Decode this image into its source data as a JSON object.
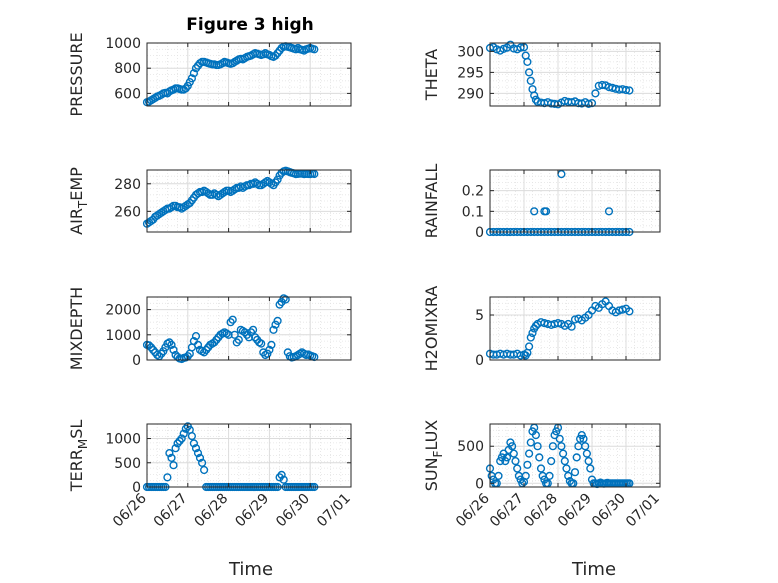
{
  "figure": {
    "title": "Figure 3 high",
    "xlabel": "Time"
  },
  "colors": {
    "marker": "#0072BD",
    "axis": "#262626",
    "grid": "#dcdcdc",
    "minor_grid": "#e3e3e3"
  },
  "x_ticks": [
    "06/26",
    "06/27",
    "06/28",
    "06/29",
    "06/30",
    "07/01"
  ],
  "chart_data": [
    {
      "type": "scatter",
      "title": "Figure 3 high",
      "ylabel": "PRESSURE",
      "ylim": [
        500,
        1000
      ],
      "yticks": [
        600,
        800,
        1000
      ],
      "grid": true,
      "x": [
        0,
        0.05,
        0.1,
        0.15,
        0.2,
        0.25,
        0.3,
        0.35,
        0.4,
        0.45,
        0.5,
        0.55,
        0.6,
        0.65,
        0.7,
        0.75,
        0.8,
        0.85,
        0.9,
        0.95,
        1,
        1.05,
        1.1,
        1.15,
        1.2,
        1.25,
        1.3,
        1.35,
        1.4,
        1.45,
        1.5,
        1.55,
        1.6,
        1.65,
        1.7,
        1.75,
        1.8,
        1.85,
        1.9,
        1.95,
        2,
        2.05,
        2.1,
        2.15,
        2.2,
        2.25,
        2.3,
        2.35,
        2.4,
        2.45,
        2.5,
        2.55,
        2.6,
        2.65,
        2.7,
        2.75,
        2.8,
        2.85,
        2.9,
        2.95,
        3,
        3.05,
        3.1,
        3.15,
        3.2,
        3.25,
        3.3,
        3.35,
        3.4,
        3.45,
        3.5,
        3.55,
        3.6,
        3.65,
        3.7,
        3.75,
        3.8,
        3.85,
        3.9,
        3.95,
        4.0,
        4.05,
        4.1
      ],
      "y": [
        530,
        535,
        545,
        555,
        565,
        575,
        580,
        590,
        600,
        605,
        600,
        615,
        625,
        630,
        640,
        640,
        635,
        630,
        630,
        640,
        660,
        690,
        720,
        760,
        800,
        820,
        840,
        850,
        850,
        845,
        840,
        835,
        830,
        830,
        825,
        825,
        830,
        840,
        850,
        845,
        840,
        835,
        840,
        850,
        860,
        870,
        875,
        870,
        880,
        890,
        895,
        900,
        910,
        920,
        915,
        910,
        905,
        910,
        920,
        910,
        905,
        895,
        890,
        900,
        920,
        940,
        960,
        970,
        975,
        970,
        965,
        960,
        955,
        950,
        960,
        950,
        945,
        940,
        950,
        955,
        960,
        955,
        950
      ]
    },
    {
      "type": "scatter",
      "ylabel": "THETA",
      "ylim": [
        287,
        302
      ],
      "yticks": [
        290,
        295,
        300
      ],
      "grid": true,
      "x": [
        0,
        0.1,
        0.2,
        0.3,
        0.4,
        0.5,
        0.6,
        0.7,
        0.8,
        0.9,
        1,
        1.05,
        1.1,
        1.15,
        1.2,
        1.25,
        1.3,
        1.35,
        1.4,
        1.5,
        1.6,
        1.7,
        1.8,
        1.9,
        2,
        2.1,
        2.2,
        2.3,
        2.4,
        2.5,
        2.6,
        2.7,
        2.8,
        2.9,
        3,
        3.1,
        3.2,
        3.3,
        3.4,
        3.5,
        3.6,
        3.7,
        3.8,
        3.9,
        4.0,
        4.1
      ],
      "y": [
        300.8,
        301,
        300.5,
        300.2,
        300.6,
        300.9,
        301.6,
        300.7,
        300.5,
        300.9,
        301,
        299,
        297.5,
        295,
        293,
        291,
        289.5,
        288.5,
        288,
        287.8,
        287.7,
        287.9,
        287.6,
        287.5,
        287.4,
        287.8,
        288.2,
        288,
        287.9,
        288.1,
        287.7,
        287.6,
        287.9,
        287.5,
        287.7,
        290,
        291.8,
        292,
        291.9,
        291.5,
        291.3,
        291.1,
        290.9,
        291,
        290.8,
        290.7
      ]
    },
    {
      "type": "scatter",
      "ylabel": "AIR_TEMP",
      "ylim": [
        245,
        290
      ],
      "yticks": [
        260,
        280
      ],
      "grid": true,
      "x": [
        0,
        0.05,
        0.1,
        0.15,
        0.2,
        0.25,
        0.3,
        0.35,
        0.4,
        0.45,
        0.5,
        0.55,
        0.6,
        0.65,
        0.7,
        0.75,
        0.8,
        0.85,
        0.9,
        0.95,
        1,
        1.05,
        1.1,
        1.15,
        1.2,
        1.25,
        1.3,
        1.35,
        1.4,
        1.45,
        1.5,
        1.55,
        1.6,
        1.65,
        1.7,
        1.75,
        1.8,
        1.85,
        1.9,
        1.95,
        2,
        2.05,
        2.1,
        2.15,
        2.2,
        2.25,
        2.3,
        2.35,
        2.4,
        2.45,
        2.5,
        2.55,
        2.6,
        2.65,
        2.7,
        2.75,
        2.8,
        2.85,
        2.9,
        2.95,
        3,
        3.05,
        3.1,
        3.15,
        3.2,
        3.25,
        3.3,
        3.35,
        3.4,
        3.45,
        3.5,
        3.55,
        3.6,
        3.65,
        3.7,
        3.75,
        3.8,
        3.85,
        3.9,
        3.95,
        4.0,
        4.05,
        4.1
      ],
      "y": [
        251,
        252,
        253,
        254,
        256,
        257,
        258,
        259,
        260,
        261,
        262,
        262,
        263,
        264,
        264,
        263,
        263,
        262,
        263,
        264,
        265,
        266,
        268,
        270,
        272,
        273,
        274,
        274,
        275,
        274,
        273,
        272,
        272,
        273,
        272,
        271,
        272,
        273,
        274,
        275,
        275,
        274,
        275,
        276,
        277,
        277,
        278,
        277,
        278,
        279,
        279,
        280,
        280,
        281,
        280,
        279,
        279,
        280,
        281,
        282,
        281,
        280,
        279,
        281,
        283,
        286,
        288,
        289,
        289.5,
        289,
        288.5,
        288,
        287.5,
        287,
        287.2,
        287.4,
        287.3,
        287,
        287.2,
        287.1,
        287,
        287.3,
        287.1
      ]
    },
    {
      "type": "scatter",
      "ylabel": "RAINFALL",
      "ylim": [
        0,
        0.3
      ],
      "yticks": [
        0,
        0.1,
        0.2
      ],
      "ytick_labels": [
        "0",
        "0.1",
        "0.2"
      ],
      "grid": true,
      "x": [
        0,
        0.1,
        0.2,
        0.3,
        0.4,
        0.5,
        0.6,
        0.7,
        0.8,
        0.9,
        1,
        1.1,
        1.2,
        1.3,
        1.4,
        1.5,
        1.6,
        1.7,
        1.8,
        1.9,
        2,
        2.1,
        2.2,
        2.3,
        2.4,
        2.5,
        2.6,
        2.7,
        2.8,
        2.9,
        3,
        3.1,
        3.2,
        3.3,
        3.4,
        3.5,
        3.6,
        3.7,
        3.8,
        3.9,
        4.0,
        4.1,
        1.3,
        1.6,
        1.65,
        2.1,
        3.5
      ],
      "y": [
        0,
        0,
        0,
        0,
        0,
        0,
        0,
        0,
        0,
        0,
        0,
        0,
        0,
        0,
        0,
        0,
        0,
        0,
        0,
        0,
        0,
        0,
        0,
        0,
        0,
        0,
        0,
        0,
        0,
        0,
        0,
        0,
        0,
        0,
        0,
        0,
        0,
        0,
        0,
        0,
        0,
        0,
        0.1,
        0.1,
        0.1,
        0.28,
        0.1
      ]
    },
    {
      "type": "scatter",
      "ylabel": "MIXDEPTH",
      "ylim": [
        0,
        2500
      ],
      "yticks": [
        0,
        1000,
        2000
      ],
      "grid": true,
      "x": [
        0,
        0.05,
        0.1,
        0.15,
        0.2,
        0.25,
        0.3,
        0.35,
        0.4,
        0.45,
        0.5,
        0.55,
        0.6,
        0.65,
        0.7,
        0.75,
        0.8,
        0.85,
        0.9,
        0.95,
        1,
        1.05,
        1.1,
        1.15,
        1.2,
        1.25,
        1.3,
        1.35,
        1.4,
        1.45,
        1.5,
        1.55,
        1.6,
        1.65,
        1.7,
        1.75,
        1.8,
        1.85,
        1.9,
        1.95,
        2,
        2.05,
        2.1,
        2.15,
        2.2,
        2.25,
        2.3,
        2.35,
        2.4,
        2.45,
        2.5,
        2.55,
        2.6,
        2.65,
        2.7,
        2.75,
        2.8,
        2.85,
        2.9,
        2.95,
        3,
        3.05,
        3.1,
        3.15,
        3.2,
        3.25,
        3.3,
        3.35,
        3.4,
        3.45,
        3.5,
        3.55,
        3.6,
        3.65,
        3.7,
        3.75,
        3.8,
        3.85,
        3.9,
        3.95,
        4.0,
        4.05,
        4.1
      ],
      "y": [
        600,
        580,
        500,
        400,
        300,
        200,
        150,
        250,
        350,
        500,
        650,
        700,
        600,
        400,
        200,
        120,
        60,
        40,
        80,
        100,
        150,
        250,
        500,
        750,
        950,
        600,
        400,
        350,
        300,
        400,
        500,
        600,
        650,
        700,
        800,
        900,
        1000,
        1050,
        1100,
        1050,
        1000,
        1500,
        1600,
        1000,
        700,
        800,
        1200,
        1150,
        1100,
        1000,
        900,
        1100,
        1200,
        900,
        800,
        700,
        650,
        300,
        200,
        250,
        400,
        600,
        1200,
        1400,
        1550,
        2200,
        2300,
        2450,
        2400,
        300,
        150,
        100,
        120,
        150,
        200,
        250,
        300,
        250,
        200,
        220,
        180,
        150,
        120
      ]
    },
    {
      "type": "scatter",
      "ylabel": "H2OMIXRA",
      "ylim": [
        0,
        7
      ],
      "yticks": [
        0,
        5
      ],
      "grid": true,
      "x": [
        0,
        0.1,
        0.2,
        0.3,
        0.4,
        0.5,
        0.6,
        0.7,
        0.8,
        0.9,
        1,
        1.05,
        1.1,
        1.15,
        1.2,
        1.25,
        1.3,
        1.35,
        1.4,
        1.5,
        1.6,
        1.7,
        1.8,
        1.9,
        2,
        2.1,
        2.2,
        2.3,
        2.4,
        2.5,
        2.6,
        2.7,
        2.8,
        2.9,
        3,
        3.1,
        3.2,
        3.3,
        3.4,
        3.5,
        3.6,
        3.7,
        3.8,
        3.9,
        4.0,
        4.1
      ],
      "y": [
        0.7,
        0.6,
        0.6,
        0.7,
        0.6,
        0.7,
        0.6,
        0.6,
        0.7,
        0.5,
        0.6,
        0.5,
        0.8,
        1.5,
        2.5,
        3,
        3.5,
        3.8,
        4,
        4.2,
        4.1,
        4,
        3.9,
        4,
        4.1,
        4,
        3.8,
        4,
        3.7,
        4.5,
        4.6,
        4.4,
        4.7,
        5,
        5.5,
        6,
        5.8,
        6.2,
        6.5,
        6,
        5.5,
        5.3,
        5.5,
        5.6,
        5.7,
        5.4
      ]
    },
    {
      "type": "scatter",
      "ylabel": "TERR_MSL",
      "ylim": [
        0,
        1300
      ],
      "yticks": [
        0,
        500,
        1000
      ],
      "grid": true,
      "x": [
        0,
        0.05,
        0.1,
        0.15,
        0.2,
        0.25,
        0.3,
        0.35,
        0.4,
        0.45,
        0.5,
        0.55,
        0.6,
        0.65,
        0.7,
        0.75,
        0.8,
        0.85,
        0.9,
        0.95,
        1,
        1.05,
        1.1,
        1.15,
        1.2,
        1.25,
        1.3,
        1.35,
        1.4,
        1.45,
        1.5,
        1.55,
        1.6,
        1.65,
        1.7,
        1.75,
        1.8,
        1.85,
        1.9,
        1.95,
        2,
        2.05,
        2.1,
        2.15,
        2.2,
        2.25,
        2.3,
        2.35,
        2.4,
        2.45,
        2.5,
        2.55,
        2.6,
        2.65,
        2.7,
        2.75,
        2.8,
        2.85,
        2.9,
        2.95,
        3,
        3.05,
        3.1,
        3.15,
        3.2,
        3.25,
        3.3,
        3.35,
        3.4,
        3.45,
        3.5,
        3.55,
        3.6,
        3.65,
        3.7,
        3.75,
        3.8,
        3.85,
        3.9,
        3.95,
        4.0,
        4.05,
        4.1
      ],
      "y": [
        0,
        0,
        0,
        0,
        0,
        0,
        0,
        0,
        0,
        0,
        200,
        700,
        600,
        450,
        800,
        900,
        950,
        1000,
        1100,
        1200,
        1250,
        1180,
        1050,
        900,
        800,
        700,
        600,
        500,
        350,
        0,
        0,
        0,
        0,
        0,
        0,
        0,
        0,
        0,
        0,
        0,
        0,
        0,
        0,
        0,
        0,
        0,
        0,
        0,
        0,
        0,
        0,
        0,
        0,
        0,
        0,
        0,
        0,
        0,
        0,
        0,
        0,
        0,
        0,
        0,
        0,
        200,
        250,
        150,
        0,
        0,
        0,
        0,
        0,
        0,
        0,
        0,
        0,
        0,
        0,
        0,
        0,
        0,
        0
      ]
    },
    {
      "type": "scatter",
      "ylabel": "SUN_FLUX",
      "ylim": [
        -50,
        800
      ],
      "yticks": [
        0,
        500
      ],
      "grid": true,
      "x": [
        0,
        0.05,
        0.1,
        0.15,
        0.2,
        0.25,
        0.3,
        0.35,
        0.4,
        0.45,
        0.5,
        0.55,
        0.6,
        0.65,
        0.7,
        0.75,
        0.8,
        0.85,
        0.9,
        0.95,
        1,
        1.05,
        1.1,
        1.15,
        1.2,
        1.25,
        1.3,
        1.35,
        1.4,
        1.45,
        1.5,
        1.55,
        1.6,
        1.65,
        1.7,
        1.75,
        1.8,
        1.85,
        1.9,
        1.95,
        2,
        2.05,
        2.1,
        2.15,
        2.2,
        2.25,
        2.3,
        2.35,
        2.4,
        2.45,
        2.5,
        2.55,
        2.6,
        2.65,
        2.7,
        2.75,
        2.8,
        2.85,
        2.9,
        2.95,
        3,
        3.05,
        3.1,
        3.15,
        3.2,
        3.25,
        3.3,
        3.35,
        3.4,
        3.45,
        3.5,
        3.55,
        3.6,
        3.65,
        3.7,
        3.75,
        3.8,
        3.85,
        3.9,
        3.95,
        4.0,
        4.05,
        4.1
      ],
      "y": [
        200,
        100,
        50,
        0,
        0,
        100,
        300,
        350,
        400,
        300,
        350,
        450,
        550,
        500,
        400,
        300,
        200,
        100,
        50,
        0,
        20,
        100,
        250,
        400,
        550,
        700,
        750,
        650,
        500,
        350,
        200,
        100,
        50,
        0,
        0,
        100,
        300,
        500,
        650,
        700,
        750,
        600,
        500,
        400,
        300,
        200,
        100,
        30,
        0,
        0,
        150,
        350,
        500,
        600,
        650,
        600,
        500,
        400,
        300,
        200,
        50,
        0,
        0,
        -10,
        0,
        10,
        0,
        -5,
        0,
        5,
        0,
        0,
        0,
        0,
        0,
        0,
        0,
        0,
        0,
        0,
        0,
        0,
        0
      ]
    }
  ]
}
